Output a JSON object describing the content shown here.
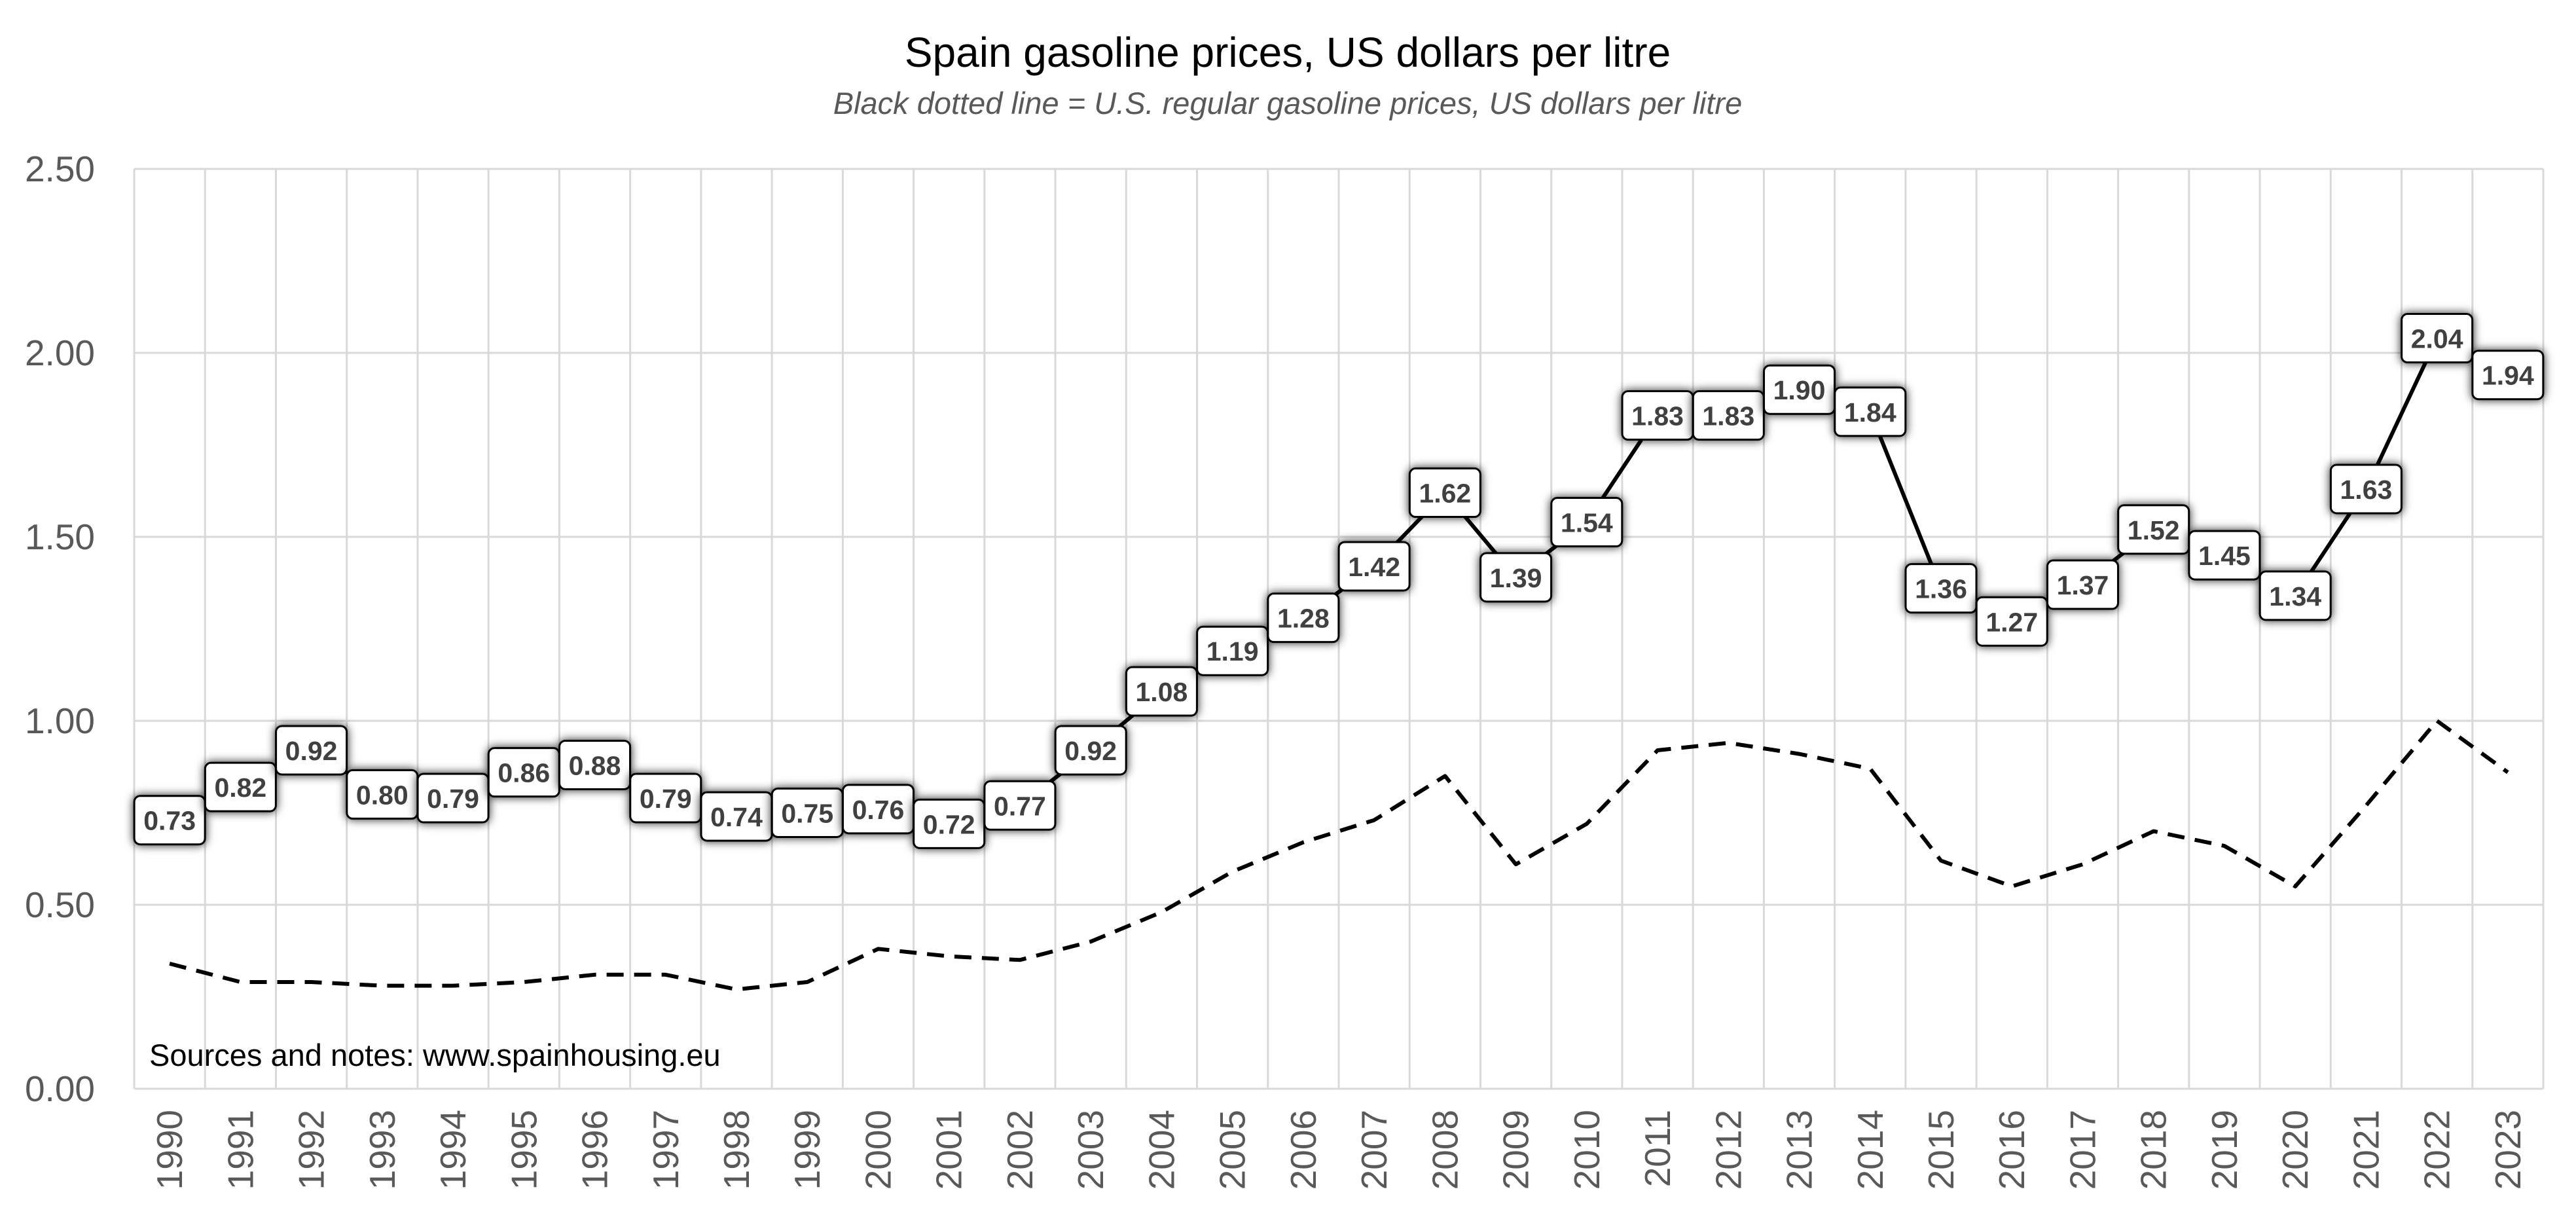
{
  "chart_data": {
    "type": "line",
    "title": "Spain gasoline prices, US dollars per litre",
    "subtitle": "Black dotted line = U.S. regular gasoline prices, US dollars per litre",
    "note": "Sources and notes: www.spainhousing.eu",
    "ylim": [
      0,
      2.5
    ],
    "yticks": [
      "0.00",
      "0.50",
      "1.00",
      "1.50",
      "2.00",
      "2.50"
    ],
    "grid": true,
    "x": [
      "1990",
      "1991",
      "1992",
      "1993",
      "1994",
      "1995",
      "1996",
      "1997",
      "1998",
      "1999",
      "2000",
      "2001",
      "2002",
      "2003",
      "2004",
      "2005",
      "2006",
      "2007",
      "2008",
      "2009",
      "2010",
      "2011",
      "2012",
      "2013",
      "2014",
      "2015",
      "2016",
      "2017",
      "2018",
      "2019",
      "2020",
      "2021",
      "2022",
      "2023"
    ],
    "series": [
      {
        "style": "solid",
        "color": "#000000",
        "labeled": true,
        "values": [
          0.73,
          0.82,
          0.92,
          0.8,
          0.79,
          0.86,
          0.88,
          0.79,
          0.74,
          0.75,
          0.76,
          0.72,
          0.77,
          0.92,
          1.08,
          1.19,
          1.28,
          1.42,
          1.62,
          1.39,
          1.54,
          1.83,
          1.83,
          1.9,
          1.84,
          1.36,
          1.27,
          1.37,
          1.52,
          1.45,
          1.34,
          1.63,
          2.04,
          1.94
        ],
        "labels": [
          "0.73",
          "0.82",
          "0.92",
          "0.80",
          "0.79",
          "0.86",
          "0.88",
          "0.79",
          "0.74",
          "0.75",
          "0.76",
          "0.72",
          "0.77",
          "0.92",
          "1.08",
          "1.19",
          "1.28",
          "1.42",
          "1.62",
          "1.39",
          "1.54",
          "1.83",
          "1.83",
          "1.90",
          "1.84",
          "1.36",
          "1.27",
          "1.37",
          "1.52",
          "1.45",
          "1.34",
          "1.63",
          "2.04",
          "1.94"
        ]
      },
      {
        "style": "dashed",
        "color": "#000000",
        "labeled": false,
        "values": [
          0.34,
          0.29,
          0.29,
          0.28,
          0.28,
          0.29,
          0.31,
          0.31,
          0.27,
          0.29,
          0.38,
          0.36,
          0.35,
          0.4,
          0.48,
          0.59,
          0.67,
          0.73,
          0.85,
          0.61,
          0.72,
          0.92,
          0.94,
          0.91,
          0.87,
          0.62,
          0.55,
          0.61,
          0.7,
          0.66,
          0.55,
          0.77,
          1.0,
          0.86
        ]
      }
    ]
  }
}
